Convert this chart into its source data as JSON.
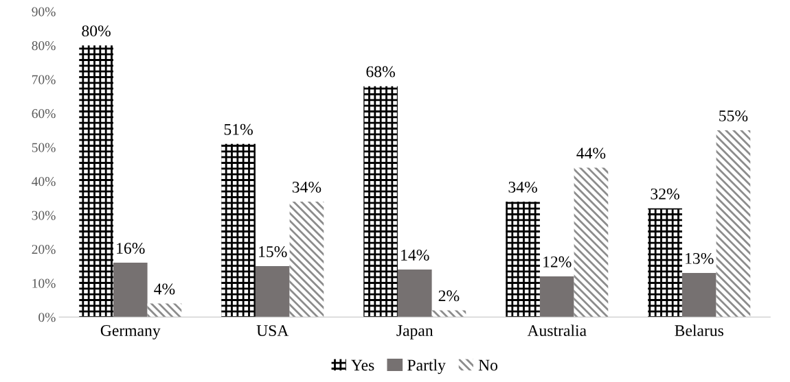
{
  "chart_data": {
    "type": "bar",
    "categories": [
      "Germany",
      "USA",
      "Japan",
      "Australia",
      "Belarus"
    ],
    "series": [
      {
        "name": "Yes",
        "color": "#000000",
        "values": [
          80,
          51,
          68,
          34,
          32
        ],
        "value_labels": [
          "80%",
          "51%",
          "68%",
          "34%",
          "32%"
        ]
      },
      {
        "name": "Partly",
        "color": "#767171",
        "values": [
          16,
          15,
          14,
          12,
          13
        ],
        "value_labels": [
          "16%",
          "15%",
          "14%",
          "12%",
          "13%"
        ]
      },
      {
        "name": "No",
        "color": "#8c8c8c",
        "values": [
          4,
          34,
          2,
          44,
          55
        ],
        "value_labels": [
          "4%",
          "34%",
          "2%",
          "44%",
          "55%"
        ]
      }
    ],
    "ylim": [
      0,
      90
    ],
    "yticks": [
      {
        "value": 0,
        "label": "0%"
      },
      {
        "value": 10,
        "label": "10%"
      },
      {
        "value": 20,
        "label": "20%"
      },
      {
        "value": 30,
        "label": "30%"
      },
      {
        "value": 40,
        "label": "40%"
      },
      {
        "value": 50,
        "label": "50%"
      },
      {
        "value": 60,
        "label": "60%"
      },
      {
        "value": 70,
        "label": "70%"
      },
      {
        "value": 80,
        "label": "80%"
      },
      {
        "value": 90,
        "label": "90%"
      }
    ],
    "grid": false,
    "legend": "bottom"
  }
}
